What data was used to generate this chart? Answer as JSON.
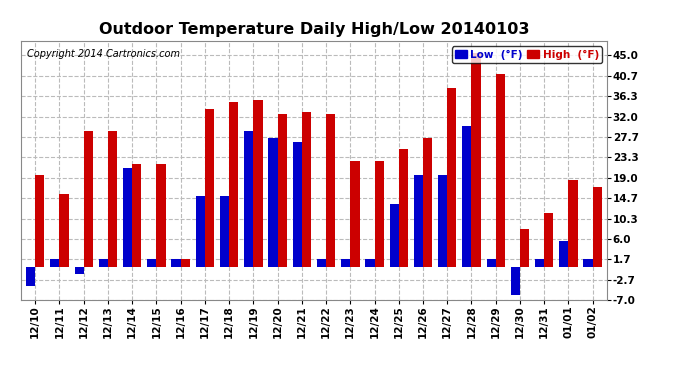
{
  "title": "Outdoor Temperature Daily High/Low 20140103",
  "copyright": "Copyright 2014 Cartronics.com",
  "ytick_labels": [
    "45.0",
    "40.7",
    "36.3",
    "32.0",
    "27.7",
    "23.3",
    "19.0",
    "14.7",
    "10.3",
    "6.0",
    "1.7",
    "-2.7",
    "-7.0"
  ],
  "ytick_values": [
    45.0,
    40.7,
    36.3,
    32.0,
    27.7,
    23.3,
    19.0,
    14.7,
    10.3,
    6.0,
    1.7,
    -2.7,
    -7.0
  ],
  "ylim": [
    -7.0,
    48.0
  ],
  "dates": [
    "12/10",
    "12/11",
    "12/12",
    "12/13",
    "12/14",
    "12/15",
    "12/16",
    "12/17",
    "12/18",
    "12/19",
    "12/20",
    "12/21",
    "12/22",
    "12/23",
    "12/24",
    "12/25",
    "12/26",
    "12/27",
    "12/28",
    "12/29",
    "12/30",
    "12/31",
    "01/01",
    "01/02"
  ],
  "low_values": [
    -4.0,
    1.7,
    -1.5,
    1.7,
    21.0,
    1.7,
    1.7,
    15.0,
    15.0,
    29.0,
    27.5,
    26.5,
    1.7,
    1.7,
    1.7,
    13.5,
    19.5,
    19.5,
    30.0,
    1.7,
    -6.0,
    1.7,
    5.5,
    1.7
  ],
  "high_values": [
    19.5,
    15.5,
    29.0,
    29.0,
    22.0,
    22.0,
    1.7,
    33.5,
    35.0,
    35.5,
    32.5,
    33.0,
    32.5,
    22.5,
    22.5,
    25.0,
    27.5,
    38.0,
    45.5,
    41.0,
    8.0,
    11.5,
    18.5,
    17.0
  ],
  "low_color": "#0000cc",
  "high_color": "#cc0000",
  "bg_color": "#ffffff",
  "grid_color": "#bbbbbb",
  "bar_width": 0.38,
  "legend_low_label": "Low  (°F)",
  "legend_high_label": "High  (°F)",
  "title_fontsize": 11.5,
  "tick_fontsize": 7.5,
  "copyright_fontsize": 7
}
